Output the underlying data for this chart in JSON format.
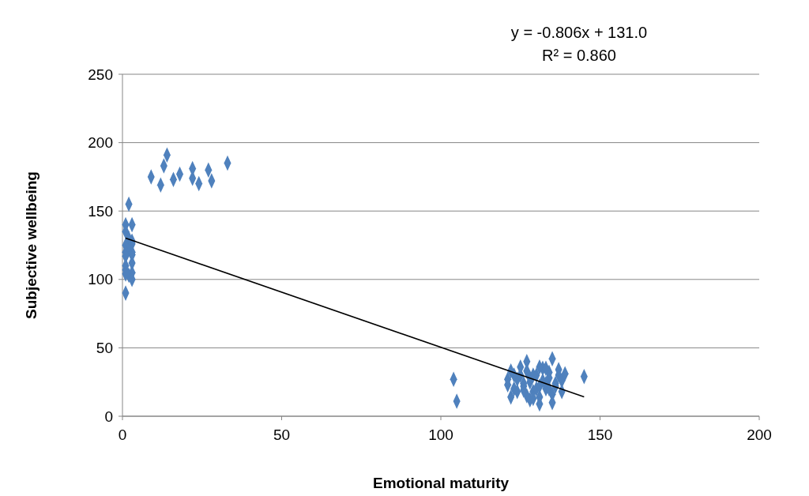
{
  "chart_data": {
    "type": "scatter",
    "xlabel": "Emotional maturity",
    "ylabel": "Subjective wellbeing",
    "xlim": [
      0,
      200
    ],
    "xticks": [
      0,
      50,
      100,
      150,
      200
    ],
    "ylim": [
      0,
      250
    ],
    "yticks": [
      0,
      50,
      100,
      150,
      200,
      250
    ],
    "grid": "y",
    "marker": "diamond",
    "annotations": [
      "y = -0.806x + 131.0",
      "R² = 0.860"
    ],
    "series": [
      {
        "color": "#4f81bd",
        "x": [
          9,
          12,
          13,
          14,
          16,
          18,
          22,
          22,
          24,
          27,
          28,
          33,
          2,
          1,
          3,
          1,
          2,
          3,
          1,
          2,
          3,
          1,
          3,
          1,
          3,
          1,
          2,
          3,
          1,
          3,
          1,
          3,
          1,
          104,
          105,
          121,
          122,
          123,
          124,
          125,
          126,
          127,
          128,
          129,
          130,
          131,
          132,
          133,
          134,
          135,
          136,
          137,
          138,
          139,
          122,
          124,
          126,
          128,
          130,
          132,
          134,
          136,
          138,
          125,
          127,
          129,
          131,
          133,
          135,
          137,
          123,
          128,
          131,
          134,
          145,
          127,
          135,
          131,
          121,
          126,
          129,
          133
        ],
        "values": [
          175,
          169,
          183,
          191,
          173,
          177,
          174,
          181,
          170,
          180,
          172,
          185,
          155,
          140,
          140,
          135,
          130,
          128,
          125,
          122,
          118,
          120,
          112,
          110,
          105,
          107,
          103,
          100,
          117,
          120,
          104,
          126,
          90,
          27,
          11,
          23,
          33,
          20,
          27,
          30,
          22,
          40,
          25,
          18,
          30,
          14,
          35,
          20,
          28,
          42,
          24,
          30,
          26,
          31,
          14,
          18,
          24,
          28,
          20,
          26,
          32,
          22,
          18,
          36,
          15,
          30,
          9,
          24,
          10,
          34,
          30,
          12,
          36,
          20,
          29,
          33,
          16,
          22,
          27,
          19,
          13,
          35
        ]
      },
      {
        "type": "line",
        "color": "#000000",
        "marker": "none",
        "x": [
          1,
          145
        ],
        "values": [
          130.2,
          14.1
        ]
      }
    ]
  }
}
